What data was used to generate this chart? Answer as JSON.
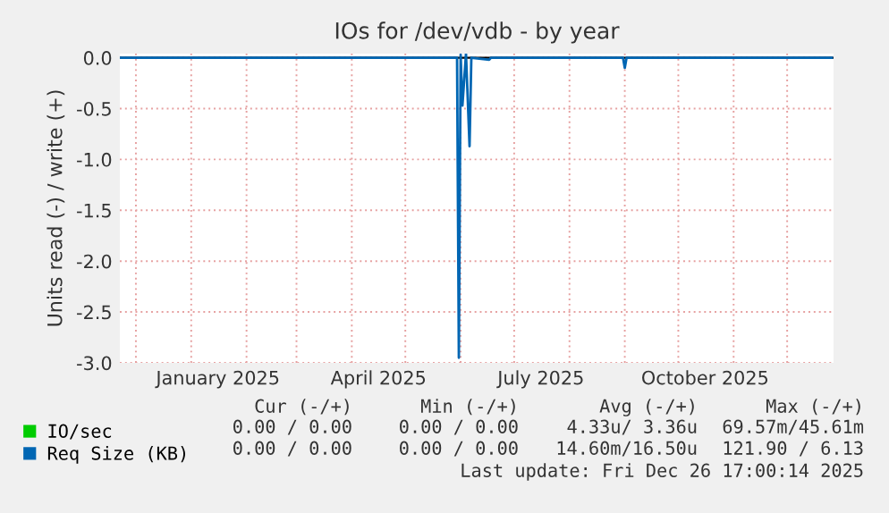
{
  "chart_data": {
    "type": "line",
    "title": "IOs for /dev/vdb - by year",
    "ylabel": "Units read (-) / write (+)",
    "series": [
      {
        "name": "IO/sec",
        "color": "#00cc00"
      },
      {
        "name": "Req Size (KB)",
        "color": "#0066b3",
        "x": [
          "2024-11-22",
          "2025-05-30",
          "2025-05-31",
          "2025-06-01",
          "2025-06-02",
          "2025-06-04",
          "2025-06-06",
          "2025-06-07",
          "2025-06-17",
          "2025-06-18",
          "2025-08-31",
          "2025-09-01",
          "2025-09-02",
          "2025-12-26"
        ],
        "values": [
          0,
          0,
          -2.95,
          0.03,
          -0.47,
          0.04,
          -0.87,
          0,
          -0.02,
          0,
          0,
          -0.1,
          0,
          0
        ]
      }
    ],
    "xlim": [
      "2024-11-22",
      "2025-12-27"
    ],
    "xticks": [
      {
        "value": "2024-12-01",
        "label": null
      },
      {
        "value": "2025-01-01",
        "label": null
      },
      {
        "value": "2025-01-16",
        "label": "January 2025"
      },
      {
        "value": "2025-02-01",
        "label": null
      },
      {
        "value": "2025-03-01",
        "label": null
      },
      {
        "value": "2025-04-01",
        "label": null
      },
      {
        "value": "2025-04-16",
        "label": "April 2025"
      },
      {
        "value": "2025-05-01",
        "label": null
      },
      {
        "value": "2025-06-01",
        "label": null
      },
      {
        "value": "2025-07-01",
        "label": null
      },
      {
        "value": "2025-07-16",
        "label": "July 2025"
      },
      {
        "value": "2025-08-01",
        "label": null
      },
      {
        "value": "2025-09-01",
        "label": null
      },
      {
        "value": "2025-10-01",
        "label": null
      },
      {
        "value": "2025-10-16",
        "label": "October 2025"
      },
      {
        "value": "2025-11-01",
        "label": null
      },
      {
        "value": "2025-12-01",
        "label": null
      }
    ],
    "ylim": [
      -3.0,
      0.04
    ],
    "yticks": [
      {
        "value": -3,
        "label": "-3.0"
      },
      {
        "value": -2.5,
        "label": "-2.5"
      },
      {
        "value": -2,
        "label": "-2.0"
      },
      {
        "value": -1.5,
        "label": "-1.5"
      },
      {
        "value": -1,
        "label": "-1.0"
      },
      {
        "value": -0.5,
        "label": "-0.5"
      },
      {
        "value": 0,
        "label": "0.0"
      }
    ],
    "ref_lines": [
      {
        "axis": "y",
        "value": 0,
        "color": "#000000"
      }
    ],
    "grid": true,
    "legend": "bottom left",
    "annotations": [
      "Cur (-/+)",
      "Min (-/+)",
      "Avg (-/+)",
      "Max (-/+)",
      "0.00 / 0.00",
      "0.00 / 0.00",
      "4.33u/ 3.36u",
      "69.57m/45.61m",
      "0.00 / 0.00",
      "0.00 / 0.00",
      "14.60m/16.50u",
      "121.90 / 6.13",
      "Last update: Fri Dec 26 17:00:14 2025"
    ]
  }
}
